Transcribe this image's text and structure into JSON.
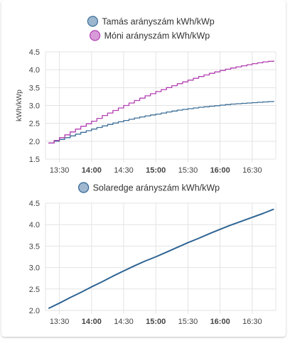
{
  "colors": {
    "tamas_line": "#3b6e98",
    "tamas_fill": "#9cb6cf",
    "moni_line": "#b33fb2",
    "moni_fill": "#d89bd8",
    "solar_line": "#2f6493",
    "solar_fill": "#9fb8d0",
    "grid": "#e3e3e3"
  },
  "chart_data": [
    {
      "type": "line",
      "step": true,
      "ylabel": "kWh/kWp",
      "ylim": [
        1.5,
        4.5
      ],
      "yticks": [
        "1.5",
        "2.0",
        "2.5",
        "3.0",
        "3.5",
        "4.0",
        "4.5"
      ],
      "xticks": [
        {
          "label": "13:30",
          "bold": false
        },
        {
          "label": "14:00",
          "bold": true
        },
        {
          "label": "14:30",
          "bold": false
        },
        {
          "label": "15:00",
          "bold": true
        },
        {
          "label": "15:30",
          "bold": false
        },
        {
          "label": "16:00",
          "bold": true
        },
        {
          "label": "16:30",
          "bold": false
        }
      ],
      "grid": true,
      "legend_position": "top-center",
      "x": [
        "13:20",
        "13:30",
        "13:40",
        "13:50",
        "14:00",
        "14:10",
        "14:20",
        "14:30",
        "14:40",
        "14:50",
        "15:00",
        "15:10",
        "15:20",
        "15:30",
        "15:40",
        "15:50",
        "16:00",
        "16:10",
        "16:20",
        "16:30",
        "16:40",
        "16:50"
      ],
      "series": [
        {
          "name": "Tamás arányszám kWh/kWp",
          "values": [
            1.95,
            2.05,
            2.15,
            2.25,
            2.34,
            2.43,
            2.51,
            2.58,
            2.65,
            2.71,
            2.76,
            2.82,
            2.87,
            2.91,
            2.95,
            2.98,
            3.01,
            3.04,
            3.06,
            3.08,
            3.1,
            3.12
          ]
        },
        {
          "name": "Móni arányszám kWh/kWp",
          "values": [
            1.95,
            2.1,
            2.26,
            2.42,
            2.56,
            2.72,
            2.86,
            3.0,
            3.14,
            3.27,
            3.39,
            3.5,
            3.61,
            3.71,
            3.81,
            3.9,
            3.98,
            4.05,
            4.11,
            4.17,
            4.22,
            4.25
          ]
        }
      ]
    },
    {
      "type": "line",
      "ylim": [
        2.0,
        4.5
      ],
      "yticks": [
        "2.0",
        "2.5",
        "3.0",
        "3.5",
        "4.0",
        "4.5"
      ],
      "xticks": [
        {
          "label": "13:30",
          "bold": false
        },
        {
          "label": "14:00",
          "bold": true
        },
        {
          "label": "14:30",
          "bold": false
        },
        {
          "label": "15:00",
          "bold": true
        },
        {
          "label": "15:30",
          "bold": false
        },
        {
          "label": "16:00",
          "bold": true
        },
        {
          "label": "16:30",
          "bold": false
        }
      ],
      "grid": true,
      "legend_position": "top-center",
      "x": [
        "13:20",
        "13:30",
        "13:40",
        "13:50",
        "14:00",
        "14:10",
        "14:20",
        "14:30",
        "14:40",
        "14:50",
        "15:00",
        "15:10",
        "15:20",
        "15:30",
        "15:40",
        "15:50",
        "16:00",
        "16:10",
        "16:20",
        "16:30",
        "16:40",
        "16:50"
      ],
      "series": [
        {
          "name": "Solaredge arányszám kWh/kWp",
          "values": [
            2.05,
            2.17,
            2.3,
            2.42,
            2.55,
            2.67,
            2.8,
            2.92,
            3.04,
            3.15,
            3.25,
            3.36,
            3.47,
            3.58,
            3.68,
            3.79,
            3.89,
            3.99,
            4.08,
            4.17,
            4.26,
            4.36
          ]
        }
      ]
    }
  ]
}
